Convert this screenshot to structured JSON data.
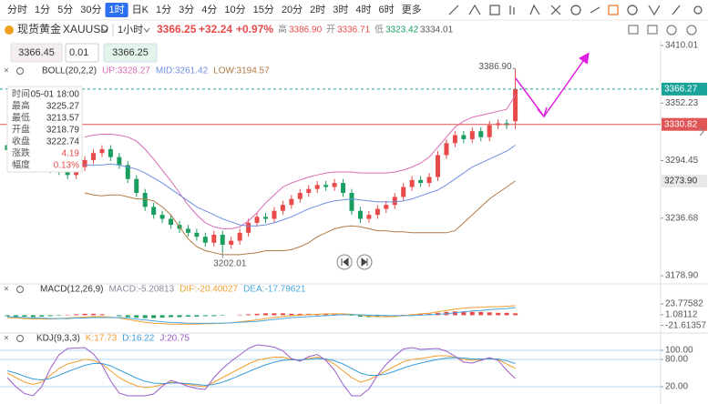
{
  "toolbar": {
    "timeframes": [
      "分时",
      "1分",
      "5分",
      "30分",
      "1时",
      "日K",
      "1分",
      "3分",
      "4分",
      "10分",
      "15分",
      "20分",
      "2时",
      "3时",
      "4时",
      "6时",
      "更多"
    ],
    "active": 4
  },
  "header": {
    "symbol": "现货黄金",
    "code": "XAUUSD",
    "interval": "1小时",
    "price": "3366.25",
    "change": "+32.24",
    "change_pct": "+0.97%",
    "high_label": "高",
    "high": "3386.90",
    "open_label": "开",
    "open": "3336.71",
    "low_label": "低",
    "low": "3323.42",
    "last": "3334.01"
  },
  "order": {
    "bid": "3366.45",
    "lot": "0.01",
    "ask": "3366.25"
  },
  "tooltip": {
    "rows": [
      {
        "label": "时间",
        "value": "05-01 18:00"
      },
      {
        "label": "最高",
        "value": "3225.27"
      },
      {
        "label": "最低",
        "value": "3213.57"
      },
      {
        "label": "开盘",
        "value": "3218.79"
      },
      {
        "label": "收盘",
        "value": "3222.74"
      },
      {
        "label": "涨跌",
        "value": "4.19",
        "color": "#e84a4a"
      },
      {
        "label": "幅度",
        "value": "0.13%",
        "color": "#e84a4a"
      }
    ]
  },
  "chart_data": [
    {
      "type": "candlestick",
      "title": "BOLL(20,2,2)",
      "up_color": "#e84a4a",
      "down_color": "#1a9e60",
      "open": [
        3310,
        3305,
        3300,
        3296,
        3290,
        3292,
        3286,
        3284,
        3280,
        3288,
        3295,
        3302,
        3306,
        3298,
        3290,
        3276,
        3262,
        3248,
        3240,
        3236,
        3230,
        3226,
        3222,
        3218,
        3212,
        3220,
        3210,
        3214,
        3222,
        3232,
        3238,
        3236,
        3244,
        3250,
        3256,
        3262,
        3266,
        3270,
        3268,
        3272,
        3262,
        3244,
        3236,
        3240,
        3246,
        3250,
        3258,
        3268,
        3275,
        3272,
        3278,
        3300,
        3312,
        3320,
        3316,
        3324,
        3318,
        3330,
        3332,
        3334.01
      ],
      "high": [
        3314,
        3309,
        3304,
        3300,
        3296,
        3296,
        3290,
        3288,
        3292,
        3299,
        3306,
        3310,
        3310,
        3302,
        3294,
        3280,
        3266,
        3252,
        3244,
        3240,
        3234,
        3230,
        3226,
        3222,
        3224,
        3224,
        3218,
        3226,
        3236,
        3242,
        3242,
        3248,
        3254,
        3260,
        3266,
        3270,
        3274,
        3274,
        3276,
        3276,
        3266,
        3248,
        3244,
        3250,
        3254,
        3262,
        3272,
        3279,
        3279,
        3282,
        3304,
        3316,
        3324,
        3324,
        3328,
        3328,
        3334,
        3336,
        3336,
        3386.9
      ],
      "low": [
        3301,
        3296,
        3292,
        3286,
        3286,
        3282,
        3280,
        3276,
        3276,
        3284,
        3291,
        3298,
        3294,
        3286,
        3272,
        3258,
        3244,
        3236,
        3232,
        3226,
        3222,
        3218,
        3214,
        3208,
        3208,
        3202.01,
        3206,
        3210,
        3218,
        3228,
        3232,
        3232,
        3240,
        3246,
        3252,
        3258,
        3262,
        3264,
        3264,
        3258,
        3240,
        3232,
        3232,
        3236,
        3242,
        3246,
        3254,
        3264,
        3268,
        3268,
        3274,
        3296,
        3308,
        3312,
        3312,
        3314,
        3314,
        3326,
        3326,
        3326
      ],
      "close": [
        3305,
        3300,
        3296,
        3290,
        3292,
        3286,
        3284,
        3280,
        3288,
        3295,
        3302,
        3306,
        3298,
        3290,
        3276,
        3262,
        3248,
        3240,
        3236,
        3230,
        3226,
        3222,
        3218,
        3212,
        3220,
        3210,
        3214,
        3222,
        3232,
        3238,
        3236,
        3244,
        3250,
        3256,
        3262,
        3266,
        3270,
        3268,
        3272,
        3262,
        3244,
        3236,
        3240,
        3246,
        3250,
        3258,
        3268,
        3275,
        3272,
        3278,
        3300,
        3312,
        3320,
        3316,
        3324,
        3318,
        3330,
        3332,
        3330,
        3366.25
      ],
      "series": [
        {
          "name": "UP:3328.27",
          "color": "#d96bb5",
          "values": [
            null,
            null,
            null,
            null,
            null,
            null,
            null,
            null,
            null,
            3318,
            3320,
            3321,
            3321,
            3320,
            3318,
            3314,
            3306,
            3296,
            3285,
            3274,
            3262,
            3250,
            3240,
            3232,
            3228,
            3226,
            3226,
            3228,
            3234,
            3242,
            3252,
            3260,
            3268,
            3272,
            3275,
            3278,
            3280,
            3282,
            3283,
            3283,
            3283,
            3282,
            3282,
            3282,
            3282,
            3283,
            3285,
            3288,
            3292,
            3298,
            3308,
            3318,
            3328,
            3334,
            3338,
            3340,
            3342,
            3344,
            3346,
            3360
          ]
        },
        {
          "name": "MID:3261.42",
          "color": "#6f8fe0",
          "values": [
            null,
            null,
            null,
            null,
            null,
            null,
            null,
            null,
            null,
            3290,
            3290,
            3290,
            3291,
            3290,
            3288,
            3286,
            3282,
            3277,
            3272,
            3266,
            3260,
            3254,
            3248,
            3244,
            3240,
            3236,
            3233,
            3230,
            3229,
            3229,
            3230,
            3232,
            3235,
            3238,
            3242,
            3246,
            3249,
            3252,
            3254,
            3255,
            3256,
            3255,
            3254,
            3253,
            3253,
            3253,
            3254,
            3256,
            3259,
            3262,
            3265,
            3270,
            3276,
            3282,
            3288,
            3292,
            3296,
            3300,
            3304,
            3310
          ]
        },
        {
          "name": "LOW:3194.57",
          "color": "#b07a45",
          "values": [
            null,
            null,
            null,
            null,
            null,
            null,
            null,
            null,
            null,
            3262,
            3260,
            3259,
            3260,
            3260,
            3258,
            3256,
            3256,
            3254,
            3248,
            3240,
            3228,
            3216,
            3208,
            3204,
            3202,
            3200,
            3200,
            3200,
            3201,
            3202,
            3204,
            3204,
            3204,
            3205,
            3208,
            3212,
            3218,
            3222,
            3226,
            3228,
            3229,
            3228,
            3226,
            3224,
            3224,
            3223,
            3223,
            3222,
            3222,
            3222,
            3222,
            3222,
            3224,
            3232,
            3240,
            3248,
            3256,
            3262,
            3268,
            3274
          ]
        }
      ],
      "price_lines": [
        {
          "value": 3366.27,
          "color": "#1aa39a",
          "text_color": "#ffffff",
          "style": "dashed"
        },
        {
          "value": 3330.82,
          "color": "#e05555",
          "text_color": "#ffffff",
          "style": "solid"
        },
        {
          "value": 3273.9,
          "label": "3273.90",
          "color": "#e8e8e8",
          "text_color": "#333333",
          "style": "none"
        }
      ],
      "annotations": [
        {
          "value": 3386.9,
          "label": "3386.90"
        },
        {
          "value": 3202.01,
          "label": "3202.01"
        }
      ],
      "ylim": [
        3172.5,
        3414.6
      ],
      "yticks": [
        3410.01,
        3352.23,
        3294.45,
        3236.68,
        {
          "value": 3178.9,
          "label": "3178.90"
        }
      ],
      "grid": false
    },
    {
      "type": "combo",
      "title": "MACD(12,26,9)",
      "up_color": "#e84a4a",
      "down_color": "#1a9e60",
      "series": [
        {
          "name": "MACD:-5.20813",
          "kind": "bar",
          "color": "#8a8aa0",
          "values": [
            -2,
            -3,
            -3,
            -4,
            -3,
            -2,
            -1,
            1,
            2,
            3,
            3,
            2,
            0,
            -2,
            -4,
            -5,
            -6,
            -6,
            -5,
            -4,
            -4,
            -3,
            -3,
            -2,
            -2,
            -1,
            0,
            1,
            2,
            3,
            4,
            4,
            4,
            3,
            3,
            3,
            2,
            2,
            2,
            1,
            -1,
            -3,
            -4,
            -3,
            -2,
            -1,
            1,
            2,
            3,
            3,
            5,
            7,
            8,
            8,
            7,
            7,
            6,
            5,
            5,
            4
          ]
        },
        {
          "name": "DIF:-20.40027",
          "kind": "line",
          "color": "#f0a030",
          "values": [
            -5,
            -6,
            -7,
            -8,
            -8,
            -8,
            -7,
            -6,
            -5,
            -4,
            -3,
            -3,
            -4,
            -6,
            -9,
            -12,
            -15,
            -17,
            -18,
            -19,
            -19,
            -19,
            -19,
            -18,
            -18,
            -17,
            -16,
            -14,
            -12,
            -10,
            -7,
            -5,
            -3,
            -1,
            0,
            1,
            2,
            3,
            3,
            3,
            2,
            0,
            -2,
            -3,
            -3,
            -3,
            -1,
            1,
            3,
            4,
            7,
            10,
            13,
            15,
            16,
            17,
            18,
            18,
            19,
            20
          ]
        },
        {
          "name": "DEA:-17.79621",
          "kind": "line",
          "color": "#4aa8e0",
          "values": [
            -3,
            -4,
            -5,
            -6,
            -6,
            -7,
            -7,
            -7,
            -6,
            -6,
            -5,
            -5,
            -5,
            -5,
            -6,
            -8,
            -10,
            -12,
            -14,
            -15,
            -16,
            -17,
            -17,
            -17,
            -17,
            -17,
            -16,
            -15,
            -14,
            -13,
            -11,
            -9,
            -7,
            -5,
            -4,
            -3,
            -2,
            -1,
            0,
            1,
            1,
            1,
            0,
            0,
            -1,
            -1,
            -1,
            -1,
            0,
            1,
            2,
            3,
            5,
            7,
            9,
            10,
            12,
            13,
            14,
            16
          ]
        }
      ],
      "ylim": [
        -30,
        47
      ],
      "yticks": [
        23.77582,
        1.08112,
        -21.61357
      ],
      "grid": false
    },
    {
      "type": "line",
      "title": "KDJ(9,3,3)",
      "series": [
        {
          "name": "K:17.73",
          "color": "#f0a030",
          "values": [
            50,
            40,
            30,
            25,
            30,
            45,
            60,
            70,
            75,
            80,
            78,
            70,
            55,
            40,
            30,
            22,
            18,
            20,
            25,
            30,
            28,
            25,
            22,
            20,
            30,
            40,
            50,
            60,
            70,
            78,
            82,
            85,
            85,
            80,
            78,
            82,
            85,
            80,
            70,
            55,
            40,
            30,
            35,
            45,
            55,
            65,
            75,
            80,
            82,
            85,
            88,
            88,
            85,
            80,
            78,
            80,
            82,
            80,
            70,
            60
          ]
        },
        {
          "name": "D:16.22",
          "color": "#3aa0d8",
          "values": [
            55,
            50,
            43,
            37,
            35,
            38,
            45,
            53,
            60,
            67,
            71,
            71,
            66,
            57,
            48,
            39,
            32,
            28,
            27,
            28,
            28,
            27,
            25,
            23,
            25,
            30,
            37,
            45,
            53,
            61,
            68,
            74,
            78,
            79,
            79,
            80,
            82,
            81,
            77,
            70,
            60,
            50,
            45,
            45,
            48,
            54,
            61,
            67,
            72,
            76,
            80,
            83,
            84,
            83,
            81,
            81,
            81,
            81,
            77,
            71
          ]
        },
        {
          "name": "J:20.75",
          "color": "#9a5cc8",
          "values": [
            40,
            20,
            5,
            0,
            20,
            60,
            90,
            104,
            105,
            106,
            92,
            68,
            33,
            6,
            0,
            0,
            0,
            4,
            21,
            34,
            28,
            21,
            16,
            14,
            40,
            60,
            76,
            90,
            104,
            112,
            110,
            107,
            99,
            82,
            76,
            86,
            91,
            78,
            56,
            25,
            0,
            0,
            15,
            45,
            69,
            87,
            103,
            106,
            102,
            103,
            104,
            98,
            87,
            74,
            72,
            78,
            84,
            78,
            56,
            38
          ]
        }
      ],
      "ylim": [
        -14,
        114
      ],
      "yticks": [
        {
          "value": 100,
          "label": "100.00"
        },
        {
          "value": 80,
          "label": "80.00"
        },
        {
          "value": 20,
          "label": "20.00"
        }
      ],
      "grid": true
    }
  ]
}
